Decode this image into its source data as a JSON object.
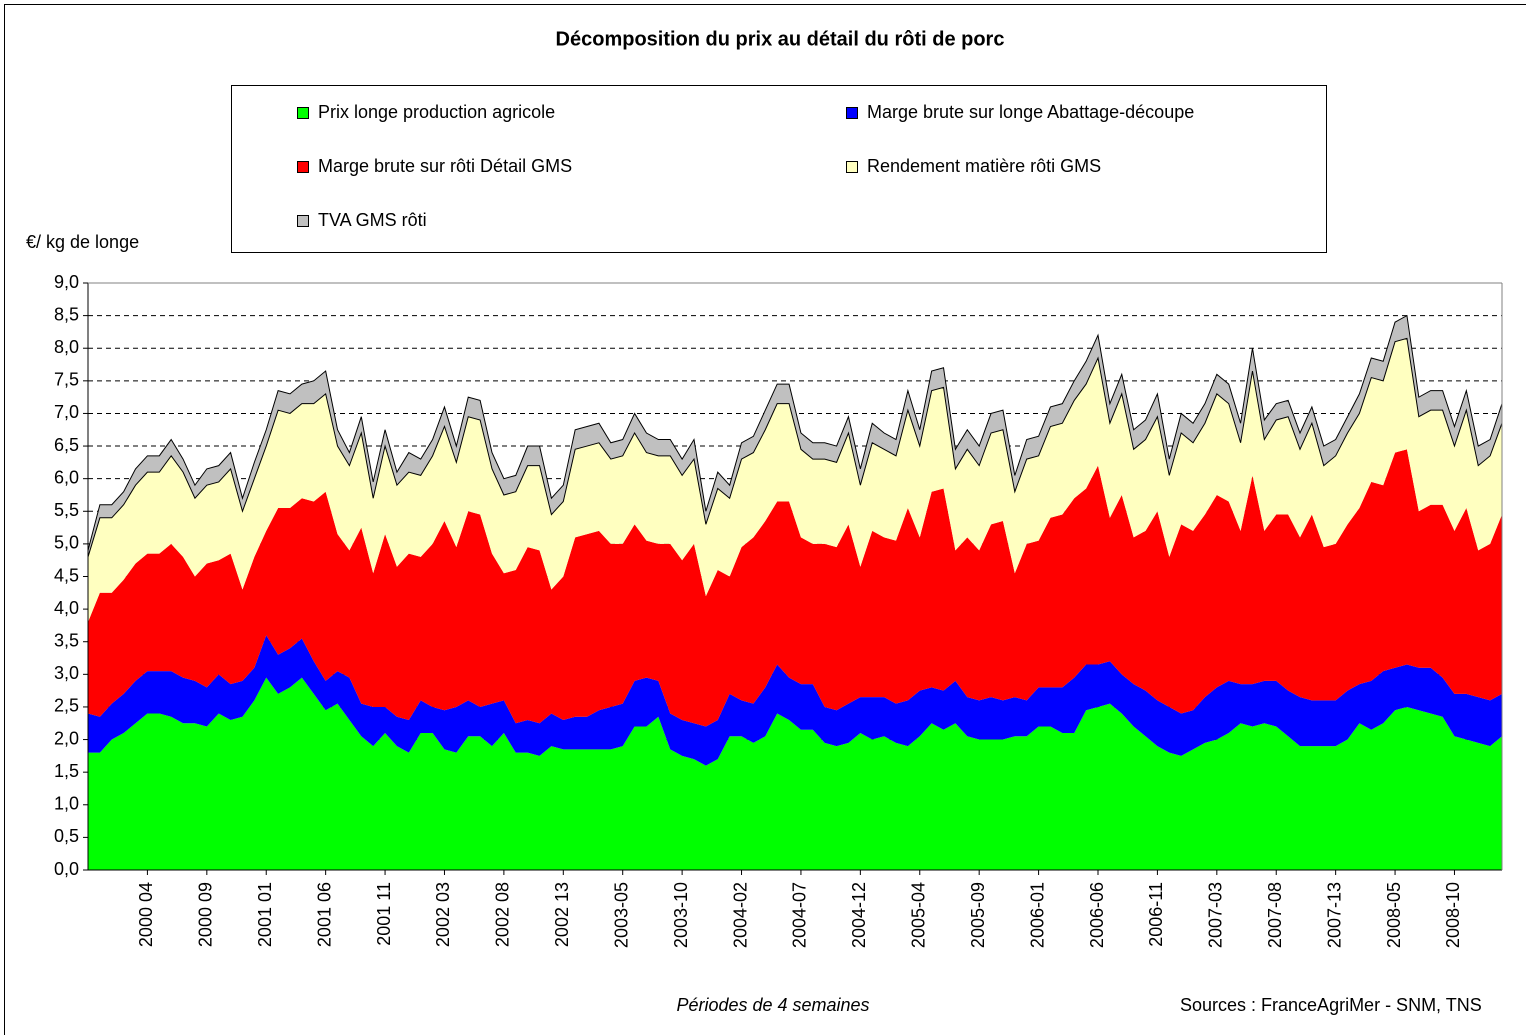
{
  "chart_data": {
    "type": "stacked_area",
    "title": "Décomposition du prix au détail du rôti de porc",
    "y_label": "€/ kg de longe",
    "x_label": "Périodes de 4 semaines",
    "source": "Sources : FranceAgriMer - SNM, TNS",
    "categories": [
      null,
      null,
      null,
      null,
      null,
      "2000 04",
      null,
      null,
      null,
      null,
      "2000 09",
      null,
      null,
      null,
      null,
      "2001 01",
      null,
      null,
      null,
      null,
      "2001 06",
      null,
      null,
      null,
      null,
      "2001 11",
      null,
      null,
      null,
      null,
      "2002 03",
      null,
      null,
      null,
      null,
      "2002 08",
      null,
      null,
      null,
      null,
      "2002 13",
      null,
      null,
      null,
      null,
      "2003-05",
      null,
      null,
      null,
      null,
      "2003-10",
      null,
      null,
      null,
      null,
      "2004-02",
      null,
      null,
      null,
      null,
      "2004-07",
      null,
      null,
      null,
      null,
      "2004-12",
      null,
      null,
      null,
      null,
      "2005-04",
      null,
      null,
      null,
      null,
      "2005-09",
      null,
      null,
      null,
      null,
      "2006-01",
      null,
      null,
      null,
      null,
      "2006-06",
      null,
      null,
      null,
      null,
      "2006-11",
      null,
      null,
      null,
      null,
      "2007-03",
      null,
      null,
      null,
      null,
      "2007-08",
      null,
      null,
      null,
      null,
      "2007-13",
      null,
      null,
      null,
      null,
      "2008-05",
      null,
      null,
      null,
      null,
      "2008-10",
      null,
      null,
      null,
      null
    ],
    "series": [
      {
        "name": "Prix longe production agricole",
        "color": "#00ff00",
        "values": [
          1.8,
          1.8,
          2.0,
          2.1,
          2.25,
          2.4,
          2.4,
          2.35,
          2.25,
          2.25,
          2.2,
          2.4,
          2.3,
          2.35,
          2.6,
          2.95,
          2.7,
          2.8,
          2.95,
          2.7,
          2.45,
          2.55,
          2.3,
          2.05,
          1.9,
          2.1,
          1.9,
          1.8,
          2.1,
          2.1,
          1.85,
          1.8,
          2.05,
          2.05,
          1.9,
          2.1,
          1.8,
          1.8,
          1.75,
          1.9,
          1.85,
          1.85,
          1.85,
          1.85,
          1.85,
          1.9,
          2.2,
          2.2,
          2.35,
          1.85,
          1.75,
          1.7,
          1.6,
          1.7,
          2.05,
          2.05,
          1.95,
          2.05,
          2.4,
          2.3,
          2.15,
          2.15,
          1.95,
          1.9,
          1.95,
          2.1,
          2.0,
          2.05,
          1.95,
          1.9,
          2.05,
          2.25,
          2.15,
          2.25,
          2.05,
          2.0,
          2.0,
          2.0,
          2.05,
          2.05,
          2.2,
          2.2,
          2.1,
          2.1,
          2.45,
          2.5,
          2.55,
          2.4,
          2.2,
          2.05,
          1.9,
          1.8,
          1.75,
          1.85,
          1.95,
          2.0,
          2.1,
          2.25,
          2.2,
          2.25,
          2.2,
          2.05,
          1.9,
          1.9,
          1.9,
          1.9,
          2.0,
          2.25,
          2.15,
          2.25,
          2.45,
          2.5,
          2.45,
          2.4,
          2.35,
          2.05,
          2.0,
          1.95,
          1.9,
          2.05
        ]
      },
      {
        "name": "Marge brute sur longe Abattage-découpe",
        "color": "#0000ff",
        "values": [
          0.6,
          0.55,
          0.55,
          0.6,
          0.65,
          0.65,
          0.65,
          0.7,
          0.7,
          0.65,
          0.6,
          0.6,
          0.55,
          0.55,
          0.5,
          0.65,
          0.6,
          0.6,
          0.6,
          0.5,
          0.45,
          0.5,
          0.65,
          0.5,
          0.6,
          0.4,
          0.45,
          0.5,
          0.5,
          0.4,
          0.6,
          0.7,
          0.55,
          0.45,
          0.65,
          0.5,
          0.45,
          0.5,
          0.5,
          0.5,
          0.45,
          0.5,
          0.5,
          0.6,
          0.65,
          0.65,
          0.7,
          0.75,
          0.55,
          0.55,
          0.55,
          0.55,
          0.6,
          0.6,
          0.65,
          0.55,
          0.6,
          0.75,
          0.75,
          0.65,
          0.7,
          0.7,
          0.55,
          0.55,
          0.6,
          0.55,
          0.65,
          0.6,
          0.6,
          0.7,
          0.7,
          0.55,
          0.6,
          0.65,
          0.6,
          0.6,
          0.65,
          0.6,
          0.6,
          0.55,
          0.6,
          0.6,
          0.7,
          0.85,
          0.7,
          0.65,
          0.65,
          0.6,
          0.65,
          0.7,
          0.7,
          0.7,
          0.65,
          0.6,
          0.7,
          0.8,
          0.8,
          0.6,
          0.65,
          0.65,
          0.7,
          0.7,
          0.75,
          0.7,
          0.7,
          0.7,
          0.75,
          0.6,
          0.75,
          0.8,
          0.65,
          0.65,
          0.65,
          0.7,
          0.6,
          0.65,
          0.7,
          0.7,
          0.7,
          0.65
        ]
      },
      {
        "name": "Marge brute sur rôti Détail GMS",
        "color": "#ff0000",
        "values": [
          1.4,
          1.9,
          1.7,
          1.75,
          1.8,
          1.8,
          1.8,
          1.95,
          1.85,
          1.6,
          1.9,
          1.75,
          2.0,
          1.4,
          1.7,
          1.6,
          2.25,
          2.15,
          2.15,
          2.45,
          2.9,
          2.1,
          1.95,
          2.7,
          2.05,
          2.65,
          2.3,
          2.55,
          2.2,
          2.5,
          2.9,
          2.45,
          2.9,
          2.95,
          2.3,
          1.95,
          2.35,
          2.65,
          2.65,
          1.9,
          2.2,
          2.75,
          2.8,
          2.75,
          2.5,
          2.45,
          2.4,
          2.1,
          2.1,
          2.6,
          2.45,
          2.75,
          2.0,
          2.3,
          1.8,
          2.35,
          2.55,
          2.55,
          2.5,
          2.7,
          2.25,
          2.15,
          2.5,
          2.5,
          2.75,
          2.0,
          2.55,
          2.45,
          2.5,
          2.95,
          2.35,
          3.0,
          3.1,
          2.0,
          2.45,
          2.3,
          2.65,
          2.75,
          1.9,
          2.4,
          2.25,
          2.6,
          2.65,
          2.75,
          2.7,
          3.05,
          2.2,
          2.75,
          2.25,
          2.45,
          2.9,
          2.3,
          2.9,
          2.75,
          2.8,
          2.95,
          2.75,
          2.35,
          3.2,
          2.3,
          2.55,
          2.7,
          2.45,
          2.85,
          2.35,
          2.4,
          2.55,
          2.7,
          3.05,
          2.85,
          3.3,
          3.3,
          2.4,
          2.5,
          2.65,
          2.5,
          2.85,
          2.25,
          2.4,
          2.75
        ]
      },
      {
        "name": "Rendement matière rôti GMS",
        "color": "#ffffc0",
        "values": [
          1.0,
          1.15,
          1.15,
          1.15,
          1.2,
          1.25,
          1.25,
          1.35,
          1.3,
          1.2,
          1.2,
          1.2,
          1.3,
          1.2,
          1.2,
          1.3,
          1.5,
          1.45,
          1.45,
          1.5,
          1.5,
          1.35,
          1.3,
          1.45,
          1.15,
          1.35,
          1.25,
          1.25,
          1.25,
          1.35,
          1.45,
          1.3,
          1.45,
          1.45,
          1.3,
          1.2,
          1.2,
          1.25,
          1.3,
          1.15,
          1.15,
          1.35,
          1.35,
          1.35,
          1.3,
          1.35,
          1.4,
          1.35,
          1.35,
          1.35,
          1.3,
          1.3,
          1.1,
          1.25,
          1.2,
          1.35,
          1.3,
          1.4,
          1.5,
          1.5,
          1.35,
          1.3,
          1.3,
          1.3,
          1.4,
          1.25,
          1.35,
          1.35,
          1.3,
          1.5,
          1.4,
          1.55,
          1.55,
          1.25,
          1.35,
          1.3,
          1.4,
          1.4,
          1.25,
          1.3,
          1.3,
          1.4,
          1.4,
          1.5,
          1.6,
          1.65,
          1.45,
          1.55,
          1.35,
          1.4,
          1.45,
          1.25,
          1.4,
          1.35,
          1.4,
          1.55,
          1.5,
          1.35,
          1.6,
          1.4,
          1.45,
          1.5,
          1.35,
          1.4,
          1.25,
          1.35,
          1.4,
          1.45,
          1.6,
          1.6,
          1.7,
          1.7,
          1.45,
          1.45,
          1.45,
          1.3,
          1.5,
          1.3,
          1.35,
          1.4
        ]
      },
      {
        "name": "TVA GMS rôti",
        "color": "#c0c0c0",
        "values": [
          0.1,
          0.2,
          0.2,
          0.2,
          0.25,
          0.25,
          0.25,
          0.25,
          0.2,
          0.2,
          0.25,
          0.25,
          0.25,
          0.2,
          0.25,
          0.25,
          0.3,
          0.3,
          0.3,
          0.35,
          0.35,
          0.25,
          0.2,
          0.25,
          0.25,
          0.25,
          0.2,
          0.3,
          0.25,
          0.25,
          0.3,
          0.25,
          0.3,
          0.3,
          0.25,
          0.25,
          0.25,
          0.3,
          0.3,
          0.25,
          0.25,
          0.3,
          0.3,
          0.3,
          0.25,
          0.25,
          0.3,
          0.3,
          0.25,
          0.25,
          0.25,
          0.3,
          0.2,
          0.25,
          0.2,
          0.25,
          0.25,
          0.3,
          0.3,
          0.3,
          0.25,
          0.25,
          0.25,
          0.25,
          0.25,
          0.25,
          0.3,
          0.25,
          0.25,
          0.3,
          0.25,
          0.3,
          0.3,
          0.3,
          0.3,
          0.3,
          0.3,
          0.3,
          0.25,
          0.3,
          0.3,
          0.3,
          0.3,
          0.3,
          0.35,
          0.35,
          0.3,
          0.3,
          0.3,
          0.3,
          0.35,
          0.25,
          0.3,
          0.3,
          0.3,
          0.3,
          0.3,
          0.3,
          0.35,
          0.3,
          0.25,
          0.25,
          0.25,
          0.25,
          0.3,
          0.25,
          0.25,
          0.3,
          0.3,
          0.3,
          0.3,
          0.35,
          0.3,
          0.3,
          0.3,
          0.3,
          0.3,
          0.3,
          0.25,
          0.3
        ]
      }
    ],
    "ylim": [
      0,
      9
    ],
    "yticks": [
      {
        "value": 0,
        "label": "0,0"
      },
      {
        "value": 0.5,
        "label": "0,5"
      },
      {
        "value": 1,
        "label": "1,0"
      },
      {
        "value": 1.5,
        "label": "1,5"
      },
      {
        "value": 2,
        "label": "2,0"
      },
      {
        "value": 2.5,
        "label": "2,5"
      },
      {
        "value": 3,
        "label": "3,0"
      },
      {
        "value": 3.5,
        "label": "3,5"
      },
      {
        "value": 4,
        "label": "4,0"
      },
      {
        "value": 4.5,
        "label": "4,5"
      },
      {
        "value": 5,
        "label": "5,0"
      },
      {
        "value": 5.5,
        "label": "5,5"
      },
      {
        "value": 6,
        "label": "6,0"
      },
      {
        "value": 6.5,
        "label": "6,5"
      },
      {
        "value": 7,
        "label": "7,0"
      },
      {
        "value": 7.5,
        "label": "7,5"
      },
      {
        "value": 8,
        "label": "8,0"
      },
      {
        "value": 8.5,
        "label": "8,5"
      },
      {
        "value": 9,
        "label": "9,0"
      }
    ],
    "grid": true
  }
}
